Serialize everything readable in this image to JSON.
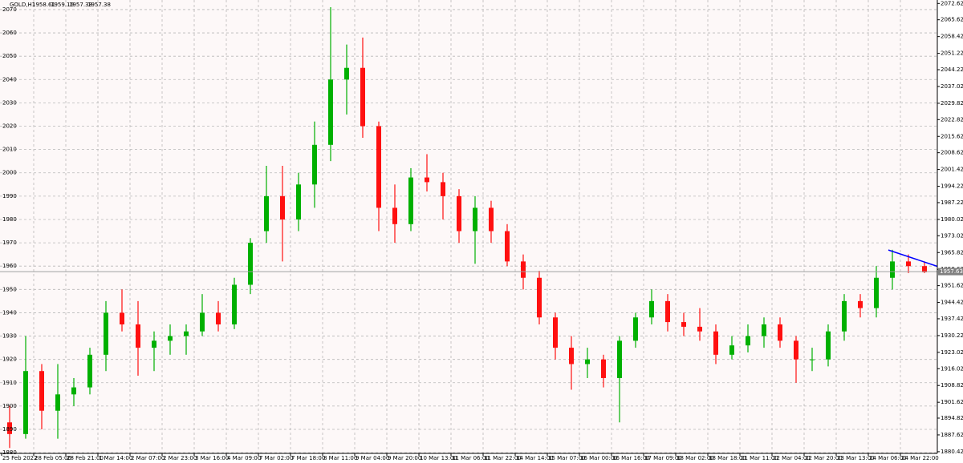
{
  "chart_data": {
    "type": "candlestick",
    "symbol": "GOLD,H1",
    "header_ohlc": [
      1958.61,
      1959.16,
      1957.33,
      1957.38
    ],
    "up_color": "#00b000",
    "down_color": "#ff1010",
    "open": [
      1893,
      1888,
      1915,
      1898,
      1905,
      1908,
      1922,
      1940,
      1935,
      1925,
      1928,
      1930,
      1932,
      1940,
      1935,
      1952,
      1975,
      1990,
      1980,
      1995,
      2012,
      2040,
      2045,
      2020,
      1985,
      1978,
      1998,
      1996,
      1990,
      1975,
      1985,
      1975,
      1962,
      1955,
      1938,
      1925,
      1918,
      1920,
      1912,
      1928,
      1938,
      1945,
      1936,
      1934,
      1932,
      1922,
      1926,
      1930,
      1935,
      1928,
      1920,
      1920,
      1932,
      1945,
      1942,
      1955,
      1962,
      1960
    ],
    "high": [
      1900,
      1930,
      1918,
      1918,
      1912,
      1925,
      1945,
      1950,
      1945,
      1932,
      1935,
      1935,
      1948,
      1945,
      1955,
      1972,
      2003,
      2003,
      2000,
      2022,
      2071,
      2055,
      2058,
      2022,
      1995,
      2002,
      2008,
      2000,
      1993,
      1990,
      1988,
      1978,
      1965,
      1958,
      1940,
      1930,
      1925,
      1922,
      1930,
      1940,
      1950,
      1948,
      1940,
      1942,
      1935,
      1930,
      1935,
      1938,
      1938,
      1930,
      1925,
      1935,
      1948,
      1948,
      1960,
      1967,
      1965,
      1962
    ],
    "low": [
      1882,
      1886,
      1890,
      1886,
      1900,
      1905,
      1915,
      1932,
      1913,
      1915,
      1922,
      1922,
      1930,
      1932,
      1933,
      1948,
      1970,
      1962,
      1975,
      1985,
      2005,
      2025,
      2015,
      1975,
      1970,
      1975,
      1992,
      1980,
      1970,
      1961,
      1970,
      1960,
      1950,
      1935,
      1920,
      1907,
      1912,
      1908,
      1893,
      1925,
      1935,
      1932,
      1930,
      1928,
      1918,
      1920,
      1923,
      1925,
      1925,
      1910,
      1915,
      1917,
      1928,
      1938,
      1938,
      1950,
      1957,
      1957
    ],
    "close": [
      1888,
      1915,
      1898,
      1905,
      1908,
      1922,
      1940,
      1935,
      1925,
      1928,
      1930,
      1932,
      1940,
      1935,
      1952,
      1970,
      1990,
      1980,
      1995,
      2012,
      2040,
      2045,
      2020,
      1985,
      1978,
      1998,
      1996,
      1990,
      1975,
      1985,
      1975,
      1962,
      1955,
      1938,
      1925,
      1918,
      1920,
      1912,
      1928,
      1938,
      1945,
      1936,
      1934,
      1932,
      1922,
      1926,
      1930,
      1935,
      1928,
      1920,
      1920,
      1932,
      1945,
      1942,
      1955,
      1962,
      1960,
      1957.38
    ],
    "xlim": [
      -0.1,
      58.3
    ],
    "xticks": [
      {
        "value": 0,
        "label": "25 Feb 2022"
      },
      {
        "value": 2,
        "label": "28 Feb 05:00"
      },
      {
        "value": 4,
        "label": "28 Feb 21:00"
      },
      {
        "value": 6,
        "label": "1 Mar 14:00"
      },
      {
        "value": 8,
        "label": "2 Mar 07:00"
      },
      {
        "value": 10,
        "label": "2 Mar 23:00"
      },
      {
        "value": 12,
        "label": "3 Mar 16:00"
      },
      {
        "value": 14,
        "label": "4 Mar 09:00"
      },
      {
        "value": 16,
        "label": "7 Mar 02:00"
      },
      {
        "value": 18,
        "label": "7 Mar 18:00"
      },
      {
        "value": 20,
        "label": "8 Mar 11:00"
      },
      {
        "value": 22,
        "label": "9 Mar 04:00"
      },
      {
        "value": 24,
        "label": "9 Mar 20:00"
      },
      {
        "value": 26,
        "label": "10 Mar 13:00"
      },
      {
        "value": 28,
        "label": "11 Mar 06:00"
      },
      {
        "value": 30,
        "label": "11 Mar 22:00"
      },
      {
        "value": 32,
        "label": "14 Mar 14:00"
      },
      {
        "value": 34,
        "label": "15 Mar 07:00"
      },
      {
        "value": 36,
        "label": "16 Mar 00:00"
      },
      {
        "value": 38,
        "label": "16 Mar 16:00"
      },
      {
        "value": 40,
        "label": "17 Mar 09:00"
      },
      {
        "value": 42,
        "label": "18 Mar 02:00"
      },
      {
        "value": 44,
        "label": "18 Mar 18:00"
      },
      {
        "value": 46,
        "label": "21 Mar 11:00"
      },
      {
        "value": 48,
        "label": "22 Mar 04:00"
      },
      {
        "value": 50,
        "label": "22 Mar 20:00"
      },
      {
        "value": 52,
        "label": "23 Mar 13:00"
      },
      {
        "value": 54,
        "label": "24 Mar 06:00"
      },
      {
        "value": 56,
        "label": "24 Mar 22:00"
      }
    ],
    "ylim": [
      1879.7,
      2074.1
    ],
    "yticks": [
      1880,
      1890,
      1900,
      1910,
      1920,
      1930,
      1940,
      1950,
      1960,
      1970,
      1980,
      1990,
      2000,
      2010,
      2020,
      2030,
      2040,
      2050,
      2060,
      2070
    ],
    "y2lim": [
      1879.7,
      2074.1
    ],
    "y2ticks": [
      1880.42,
      1887.62,
      1894.82,
      1901.62,
      1908.82,
      1916.02,
      1923.02,
      1930.22,
      1937.42,
      1944.42,
      1951.62,
      1958.62,
      1965.82,
      1973.02,
      1980.02,
      1987.22,
      1994.22,
      2001.42,
      2008.62,
      2015.62,
      2022.82,
      2029.82,
      2037.02,
      2044.22,
      2051.22,
      2058.42,
      2065.62,
      2072.62
    ],
    "grid": true,
    "price_line": 1957.63,
    "trendline": {
      "x": [
        55.25,
        58.3
      ],
      "y": [
        1966.9,
        1959.9
      ],
      "color": "#0000ff"
    }
  }
}
